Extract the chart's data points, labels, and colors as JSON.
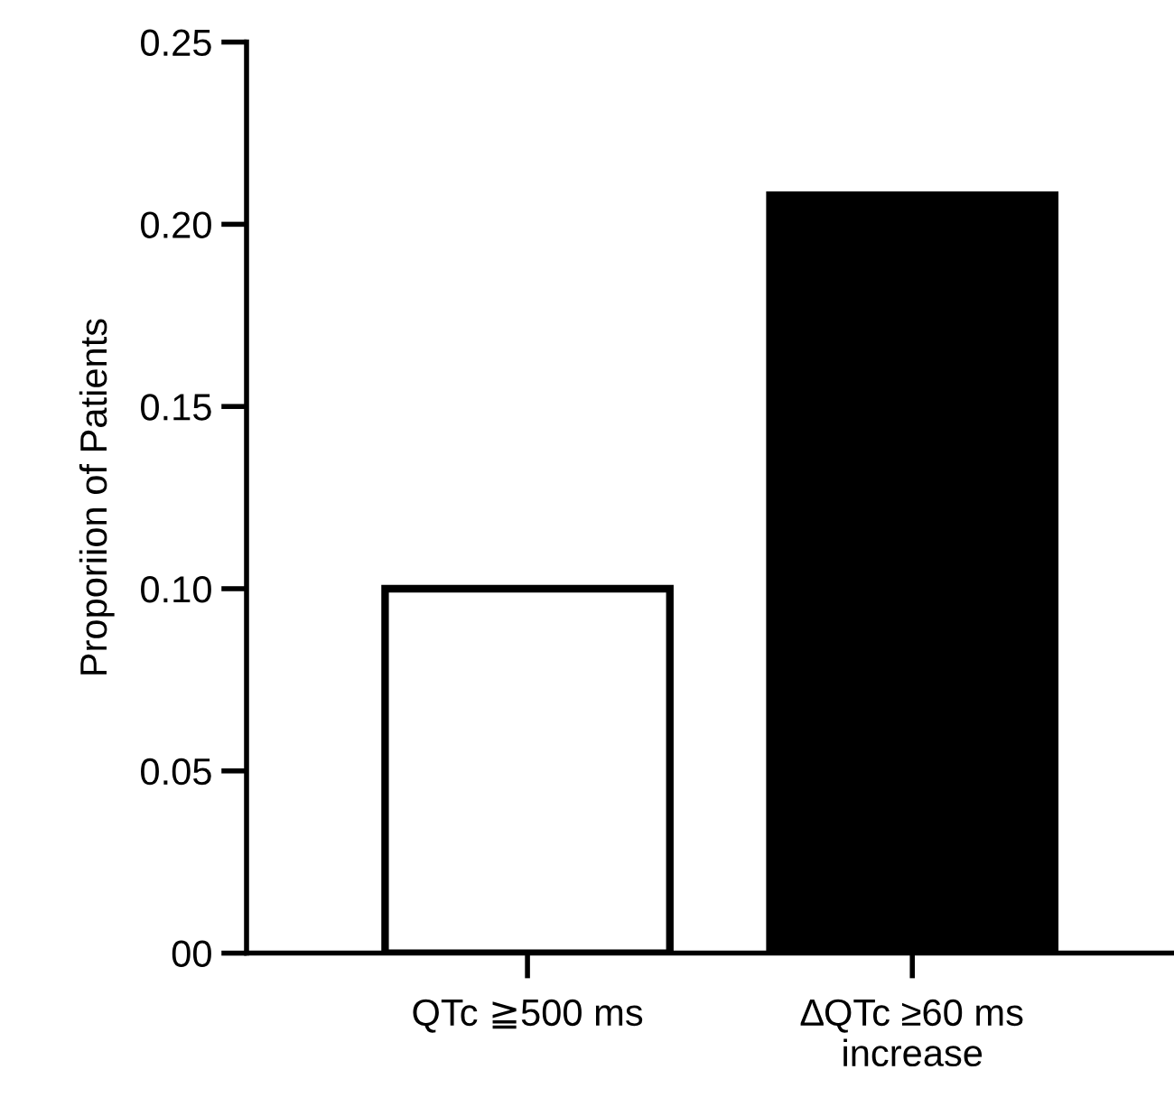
{
  "chart_data": {
    "type": "bar",
    "ylabel": "Proporiion of Patients",
    "categories": [
      "QTc ≧500 ms",
      "∆QTc ≥60 ms\nincrease"
    ],
    "values": [
      0.1,
      0.208
    ],
    "colors": [
      "#ffffff",
      "#000000"
    ],
    "ylim": [
      0,
      0.25
    ],
    "yticks": [
      {
        "value": 0,
        "label": "00"
      },
      0.05,
      {
        "value": 0.1,
        "label": "0.10"
      },
      0.15,
      {
        "value": 0.2,
        "label": "0.20"
      },
      0.25
    ],
    "grid": false
  }
}
